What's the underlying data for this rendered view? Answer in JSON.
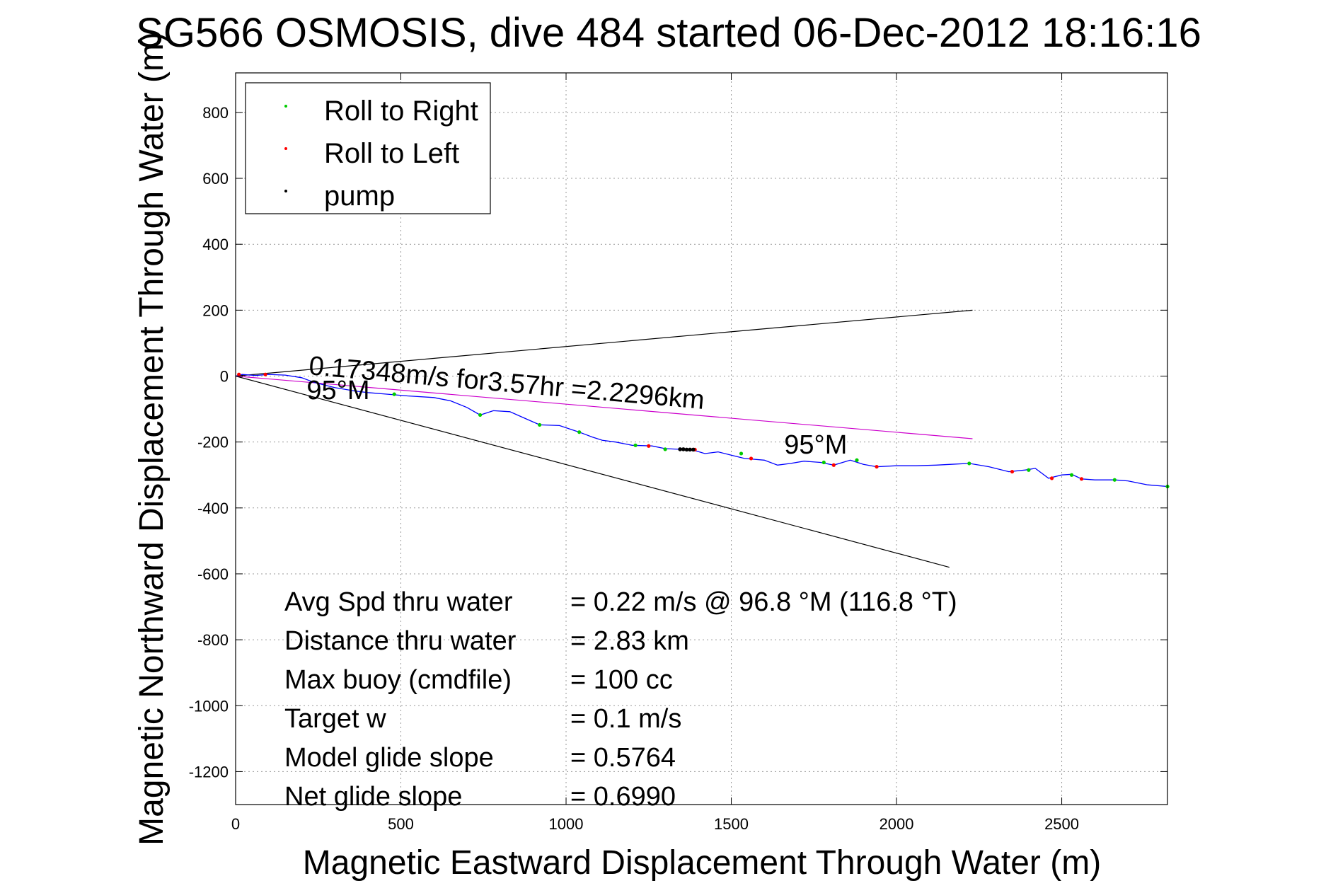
{
  "chart_data": {
    "type": "line",
    "title": "SG566 OSMOSIS, dive 484 started 06-Dec-2012 18:16:16",
    "xlabel": "Magnetic Eastward Displacement Through Water (m)",
    "ylabel": "Magnetic Northward Displacement Through Water (m)",
    "xlim": [
      0,
      2820
    ],
    "ylim": [
      -1300,
      920
    ],
    "xticks": [
      "0",
      "500",
      "1000",
      "1500",
      "2000",
      "2500"
    ],
    "xtick_values": [
      0,
      500,
      1000,
      1500,
      2000,
      2500
    ],
    "yticks": [
      "800",
      "600",
      "400",
      "200",
      "0",
      "-200",
      "-400",
      "-600",
      "-800",
      "-1000",
      "-1200"
    ],
    "ytick_values": [
      800,
      600,
      400,
      200,
      0,
      -200,
      -400,
      -600,
      -800,
      -1000,
      -1200
    ],
    "grid": true,
    "legend_position": "top-left",
    "legend": [
      {
        "label": "Roll to Right",
        "color": "#00cc00"
      },
      {
        "label": "Roll to Left",
        "color": "#ff0000"
      },
      {
        "label": "pump",
        "color": "#000000"
      }
    ],
    "series": [
      {
        "color": "#0000ff",
        "x": [
          0,
          20,
          60,
          100,
          150,
          200,
          240,
          300,
          360,
          400,
          460,
          520,
          600,
          650,
          700,
          740,
          780,
          830,
          880,
          920,
          980,
          1040,
          1080,
          1110,
          1150,
          1200,
          1260,
          1300,
          1340,
          1380,
          1420,
          1460,
          1500,
          1540,
          1600,
          1640,
          1680,
          1720,
          1770,
          1810,
          1860,
          1900,
          1940,
          2000,
          2060,
          2120,
          2160,
          2220,
          2280,
          2340,
          2390,
          2420,
          2460,
          2500,
          2530,
          2560,
          2600,
          2660,
          2700,
          2760,
          2820
        ],
        "y": [
          0,
          5,
          2,
          5,
          3,
          -5,
          -20,
          -35,
          -45,
          -50,
          -55,
          -60,
          -65,
          -75,
          -95,
          -118,
          -105,
          -108,
          -130,
          -148,
          -150,
          -170,
          -185,
          -195,
          -200,
          -210,
          -212,
          -220,
          -222,
          -223,
          -235,
          -230,
          -240,
          -250,
          -255,
          -270,
          -265,
          -258,
          -262,
          -270,
          -255,
          -268,
          -275,
          -272,
          -272,
          -270,
          -268,
          -265,
          -275,
          -290,
          -285,
          -280,
          -310,
          -300,
          -298,
          -312,
          -315,
          -315,
          -318,
          -330,
          -335
        ]
      }
    ],
    "roll_right_points": {
      "x": [
        480,
        740,
        920,
        1040,
        1210,
        1300,
        1530,
        1780,
        1880,
        2220,
        2400,
        2530,
        2660,
        2820
      ],
      "y": [
        -55,
        -118,
        -148,
        -170,
        -210,
        -222,
        -235,
        -262,
        -255,
        -265,
        -285,
        -300,
        -315,
        -335
      ]
    },
    "roll_left_points": {
      "x": [
        10,
        90,
        1250,
        1390,
        1560,
        1810,
        1940,
        2350,
        2470,
        2560
      ],
      "y": [
        5,
        5,
        -212,
        -223,
        -250,
        -270,
        -275,
        -290,
        -310,
        -312
      ]
    },
    "pump_points": {
      "x": [
        1345,
        1355,
        1365,
        1375,
        1385
      ],
      "y": [
        -222,
        -222,
        -223,
        -223,
        -223
      ]
    },
    "reference_lines": [
      {
        "color": "#000000",
        "x": [
          0,
          2230
        ],
        "y": [
          0,
          200
        ]
      },
      {
        "color": "#000000",
        "x": [
          0,
          2160
        ],
        "y": [
          0,
          -580
        ]
      },
      {
        "color": "#cc00cc",
        "x": [
          0,
          2230
        ],
        "y": [
          0,
          -190
        ]
      }
    ],
    "annotations": [
      {
        "text": "0.17348m/s for3.57hr =2.2296km",
        "x": 220,
        "y": 5,
        "rotation_deg": 5
      },
      {
        "text": "95°M",
        "x": 215,
        "y": -70
      },
      {
        "text": "95°M",
        "x": 1660,
        "y": -235
      }
    ],
    "stats": [
      {
        "label": "Avg Spd thru water",
        "value": "=  0.22 m/s @  96.8 °M (116.8 °T)"
      },
      {
        "label": "Distance thru water",
        "value": "=  2.83 km"
      },
      {
        "label": "Max buoy (cmdfile)",
        "value": "= 100 cc"
      },
      {
        "label": "Target w",
        "value": "= 0.1 m/s"
      },
      {
        "label": "Model glide slope",
        "value": "= 0.5764"
      },
      {
        "label": "Net glide slope",
        "value": "= 0.6990"
      }
    ]
  }
}
